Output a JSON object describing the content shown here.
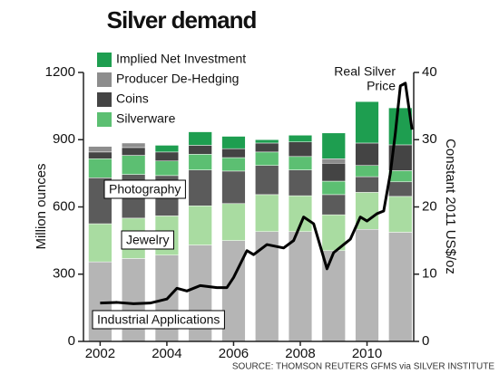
{
  "chart_data": {
    "type": "bar",
    "title": "Silver demand",
    "ylabel": "Million ounces",
    "y2label": "Constant 2011 US$/oz",
    "source": "SOURCE: THOMSON REUTERS GFMS via SILVER INSTITUTE",
    "x": [
      2002,
      2003,
      2004,
      2005,
      2006,
      2007,
      2008,
      2009,
      2010,
      2011
    ],
    "xlim": [
      2001.5,
      2011.4
    ],
    "xticks": [
      2002,
      2004,
      2006,
      2008,
      2010
    ],
    "ylim": [
      0,
      1200
    ],
    "yticks": [
      0,
      300,
      600,
      900,
      1200
    ],
    "y2lim": [
      0,
      40
    ],
    "y2ticks": [
      0,
      10,
      20,
      30,
      40
    ],
    "stacked": true,
    "grid": false,
    "series": [
      {
        "name": "Industrial Applications",
        "color": "#b5b5b5",
        "values": [
          355,
          370,
          385,
          430,
          450,
          490,
          490,
          405,
          500,
          487
        ]
      },
      {
        "name": "Jewelry",
        "color": "#a9dca1",
        "values": [
          170,
          180,
          175,
          175,
          165,
          165,
          160,
          160,
          165,
          160
        ]
      },
      {
        "name": "Photography",
        "color": "#5b5b5b",
        "values": [
          205,
          195,
          180,
          160,
          145,
          130,
          115,
          90,
          70,
          65
        ]
      },
      {
        "name": "Silverware",
        "color": "#5cbf72",
        "values": [
          85,
          85,
          65,
          70,
          60,
          60,
          60,
          60,
          50,
          50
        ]
      },
      {
        "name": "Coins",
        "color": "#444444",
        "values": [
          30,
          35,
          40,
          40,
          40,
          40,
          65,
          80,
          100,
          115
        ]
      },
      {
        "name": "Producer De-Hedging",
        "color": "#8d8d8d",
        "values": [
          25,
          20,
          0,
          0,
          0,
          0,
          0,
          20,
          0,
          0
        ]
      },
      {
        "name": "Implied Net Investment",
        "color": "#1e9e50",
        "values": [
          0,
          0,
          30,
          60,
          55,
          15,
          30,
          115,
          185,
          165
        ]
      }
    ],
    "line": {
      "label": [
        "Real Silver",
        "Price"
      ],
      "color": "#000000",
      "axis": "y2",
      "x": [
        2002,
        2002.5,
        2003,
        2003.5,
        2004,
        2004.3,
        2004.6,
        2005,
        2005.5,
        2005.8,
        2006,
        2006.4,
        2006.6,
        2007,
        2007.5,
        2007.8,
        2008.1,
        2008.4,
        2008.8,
        2009,
        2009.5,
        2009.8,
        2010,
        2010.3,
        2010.5,
        2010.7,
        2010.85,
        2011.0,
        2011.15,
        2011.35
      ],
      "values": [
        5.7,
        5.8,
        5.6,
        5.7,
        6.3,
        7.9,
        7.5,
        8.3,
        8.0,
        8.0,
        9.5,
        13.5,
        12.9,
        14.4,
        13.9,
        15,
        18.5,
        17.5,
        10.8,
        13.2,
        15.2,
        18.5,
        17.9,
        19,
        19.4,
        25,
        31,
        38,
        38.4,
        31.5
      ]
    }
  }
}
